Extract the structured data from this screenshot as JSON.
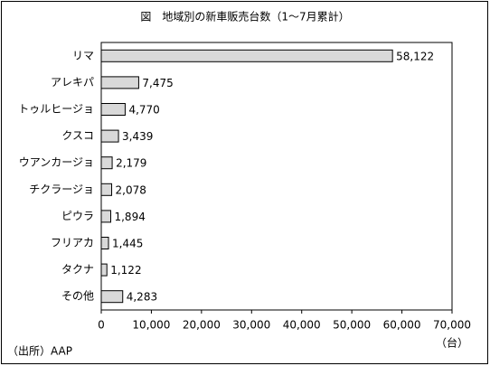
{
  "chart_data": {
    "type": "bar",
    "orientation": "horizontal",
    "title": "図　地域別の新車販売台数（1～7月累計）",
    "categories": [
      "リマ",
      "アレキパ",
      "トゥルヒージョ",
      "クスコ",
      "ウアンカージョ",
      "チクラージョ",
      "ピウラ",
      "フリアカ",
      "タクナ",
      "その他"
    ],
    "values": [
      58122,
      7475,
      4770,
      3439,
      2179,
      2078,
      1894,
      1445,
      1122,
      4283
    ],
    "value_labels": [
      "58,122",
      "7,475",
      "4,770",
      "3,439",
      "2,179",
      "2,078",
      "1,894",
      "1,445",
      "1,122",
      "4,283"
    ],
    "color": "#d9d9d9",
    "xlim": [
      0,
      70000
    ],
    "xticks": [
      0,
      {
        "value": 10000,
        "label": "10,000"
      },
      {
        "value": 20000,
        "label": "20,000"
      },
      {
        "value": 30000,
        "label": "30,000"
      },
      {
        "value": 40000,
        "label": "40,000"
      },
      {
        "value": 50000,
        "label": "50,000"
      },
      {
        "value": 60000,
        "label": "60,000"
      },
      {
        "value": 70000,
        "label": "70,000"
      }
    ],
    "unit_label": "（台）",
    "source": "（出所）AAP",
    "grid": false
  }
}
